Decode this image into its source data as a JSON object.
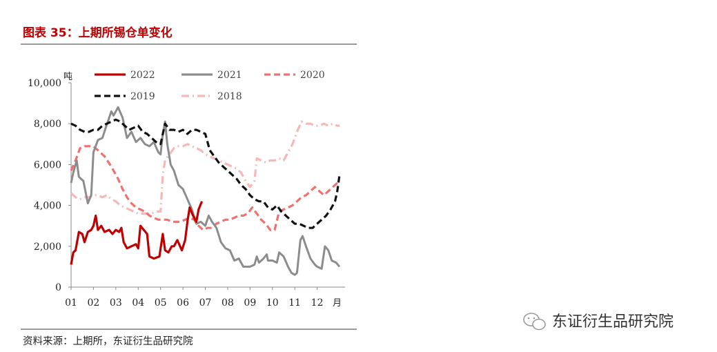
{
  "figure": {
    "title": "图表 35：上期所锡仓单变化",
    "source": "资料来源：上期所，东证衍生品研究院",
    "watermark": "东证衍生品研究院"
  },
  "chart_data": {
    "type": "line",
    "title": "图表 35：上期所锡仓单变化",
    "ylabel": "吨",
    "xlabel": "月",
    "xlim": [
      1,
      13
    ],
    "ylim": [
      0,
      10000
    ],
    "yticks": [
      0,
      2000,
      4000,
      6000,
      8000,
      10000
    ],
    "ytick_labels": [
      "0",
      "2,000",
      "4,000",
      "6,000",
      "8,000",
      "10,000"
    ],
    "xticks": [
      1,
      2,
      3,
      4,
      5,
      6,
      7,
      8,
      9,
      10,
      11,
      12
    ],
    "xtick_labels": [
      "01",
      "02",
      "03",
      "04",
      "05",
      "06",
      "07",
      "08",
      "09",
      "10",
      "11",
      "12"
    ],
    "grid": false,
    "legend_position": "top",
    "colors": {
      "2022": "#c00000",
      "2021": "#8c8c8c",
      "2020": "#f07070",
      "2019": "#111111",
      "2018": "#f5b8b8"
    },
    "series": [
      {
        "name": "2022",
        "style": "solid",
        "points": [
          [
            1.0,
            1100
          ],
          [
            1.1,
            1700
          ],
          [
            1.2,
            1800
          ],
          [
            1.35,
            2700
          ],
          [
            1.5,
            2600
          ],
          [
            1.6,
            2200
          ],
          [
            1.75,
            2700
          ],
          [
            1.9,
            2800
          ],
          [
            2.0,
            3000
          ],
          [
            2.1,
            3500
          ],
          [
            2.2,
            2800
          ],
          [
            2.35,
            3000
          ],
          [
            2.5,
            2700
          ],
          [
            2.7,
            2800
          ],
          [
            2.85,
            2600
          ],
          [
            3.0,
            2800
          ],
          [
            3.15,
            2700
          ],
          [
            3.25,
            2900
          ],
          [
            3.35,
            2200
          ],
          [
            3.5,
            1900
          ],
          [
            3.7,
            2000
          ],
          [
            3.9,
            2100
          ],
          [
            4.0,
            1900
          ],
          [
            4.1,
            3000
          ],
          [
            4.25,
            2800
          ],
          [
            4.4,
            2600
          ],
          [
            4.5,
            1500
          ],
          [
            4.7,
            1400
          ],
          [
            4.95,
            1500
          ],
          [
            5.1,
            2600
          ],
          [
            5.2,
            1800
          ],
          [
            5.35,
            1700
          ],
          [
            5.5,
            2000
          ],
          [
            5.6,
            2000
          ],
          [
            5.75,
            2300
          ],
          [
            5.95,
            1800
          ],
          [
            6.1,
            2300
          ],
          [
            6.2,
            3200
          ],
          [
            6.3,
            3900
          ],
          [
            6.45,
            3500
          ],
          [
            6.6,
            3200
          ],
          [
            6.7,
            3800
          ],
          [
            6.85,
            4200
          ]
        ]
      },
      {
        "name": "2021",
        "style": "solid",
        "points": [
          [
            1.0,
            5100
          ],
          [
            1.1,
            5600
          ],
          [
            1.25,
            6200
          ],
          [
            1.35,
            5400
          ],
          [
            1.55,
            5200
          ],
          [
            1.75,
            4100
          ],
          [
            1.9,
            4500
          ],
          [
            2.0,
            6600
          ],
          [
            2.2,
            7200
          ],
          [
            2.4,
            7300
          ],
          [
            2.55,
            7800
          ],
          [
            2.8,
            8600
          ],
          [
            2.9,
            8400
          ],
          [
            3.1,
            8800
          ],
          [
            3.3,
            8300
          ],
          [
            3.5,
            7300
          ],
          [
            3.7,
            7600
          ],
          [
            3.9,
            7100
          ],
          [
            4.1,
            7300
          ],
          [
            4.3,
            7000
          ],
          [
            4.5,
            6900
          ],
          [
            4.7,
            7100
          ],
          [
            4.9,
            6600
          ],
          [
            5.0,
            6500
          ],
          [
            5.1,
            7500
          ],
          [
            5.2,
            8100
          ],
          [
            5.3,
            7000
          ],
          [
            5.45,
            6000
          ],
          [
            5.6,
            5700
          ],
          [
            5.8,
            5000
          ],
          [
            6.0,
            4800
          ],
          [
            6.2,
            4300
          ],
          [
            6.4,
            3800
          ],
          [
            6.6,
            3100
          ],
          [
            6.8,
            3200
          ],
          [
            7.0,
            3000
          ],
          [
            7.15,
            3500
          ],
          [
            7.3,
            3200
          ],
          [
            7.5,
            2900
          ],
          [
            7.7,
            2200
          ],
          [
            7.9,
            1900
          ],
          [
            8.1,
            1800
          ],
          [
            8.3,
            1300
          ],
          [
            8.5,
            1400
          ],
          [
            8.7,
            1000
          ],
          [
            9.0,
            1000
          ],
          [
            9.2,
            1100
          ],
          [
            9.3,
            1500
          ],
          [
            9.4,
            1200
          ],
          [
            9.6,
            1400
          ],
          [
            9.75,
            1600
          ],
          [
            9.8,
            1300
          ],
          [
            10.0,
            1300
          ],
          [
            10.2,
            1200
          ],
          [
            10.3,
            1700
          ],
          [
            10.5,
            1500
          ],
          [
            10.7,
            1000
          ],
          [
            10.85,
            700
          ],
          [
            11.0,
            600
          ],
          [
            11.1,
            700
          ],
          [
            11.25,
            2300
          ],
          [
            11.35,
            2500
          ],
          [
            11.5,
            2000
          ],
          [
            11.7,
            1400
          ],
          [
            11.9,
            1100
          ],
          [
            12.0,
            1000
          ],
          [
            12.2,
            900
          ],
          [
            12.35,
            2000
          ],
          [
            12.5,
            1800
          ],
          [
            12.65,
            1300
          ],
          [
            12.85,
            1200
          ],
          [
            13.0,
            1000
          ]
        ]
      },
      {
        "name": "2020",
        "style": "dashed",
        "points": [
          [
            1.0,
            5700
          ],
          [
            1.2,
            6200
          ],
          [
            1.4,
            6800
          ],
          [
            1.6,
            6900
          ],
          [
            1.8,
            6900
          ],
          [
            2.0,
            6900
          ],
          [
            2.2,
            6700
          ],
          [
            2.5,
            6400
          ],
          [
            2.8,
            5900
          ],
          [
            3.1,
            5300
          ],
          [
            3.3,
            4800
          ],
          [
            3.5,
            4400
          ],
          [
            3.7,
            4100
          ],
          [
            3.9,
            3900
          ],
          [
            4.1,
            3800
          ],
          [
            4.3,
            3700
          ],
          [
            4.5,
            3500
          ],
          [
            4.7,
            3400
          ],
          [
            4.9,
            3300
          ],
          [
            5.1,
            3300
          ],
          [
            5.3,
            3300
          ],
          [
            5.5,
            3200
          ],
          [
            5.7,
            3200
          ],
          [
            5.9,
            3200
          ],
          [
            6.1,
            3300
          ],
          [
            6.3,
            3400
          ],
          [
            6.5,
            3300
          ],
          [
            6.7,
            3000
          ],
          [
            6.9,
            2800
          ],
          [
            7.1,
            2900
          ],
          [
            7.3,
            2900
          ],
          [
            7.5,
            3100
          ],
          [
            7.7,
            3200
          ],
          [
            7.9,
            3300
          ],
          [
            8.1,
            3300
          ],
          [
            8.3,
            3400
          ],
          [
            8.5,
            3500
          ],
          [
            8.7,
            3500
          ],
          [
            8.9,
            3600
          ],
          [
            9.1,
            3900
          ],
          [
            9.3,
            3600
          ],
          [
            9.5,
            3300
          ],
          [
            9.7,
            3100
          ],
          [
            9.9,
            2800
          ],
          [
            10.1,
            2800
          ],
          [
            10.3,
            3700
          ],
          [
            10.5,
            3800
          ],
          [
            10.7,
            3900
          ],
          [
            10.9,
            4000
          ],
          [
            11.1,
            4200
          ],
          [
            11.3,
            4400
          ],
          [
            11.5,
            4500
          ],
          [
            11.7,
            4700
          ],
          [
            11.9,
            4900
          ],
          [
            12.1,
            4700
          ],
          [
            12.3,
            4500
          ],
          [
            12.5,
            4700
          ],
          [
            12.7,
            4900
          ],
          [
            12.9,
            5100
          ],
          [
            13.0,
            5200
          ]
        ]
      },
      {
        "name": "2019",
        "style": "dashed",
        "points": [
          [
            1.0,
            8000
          ],
          [
            1.2,
            7900
          ],
          [
            1.4,
            7700
          ],
          [
            1.6,
            7600
          ],
          [
            1.8,
            7600
          ],
          [
            2.0,
            7700
          ],
          [
            2.2,
            7700
          ],
          [
            2.4,
            7900
          ],
          [
            2.6,
            8000
          ],
          [
            2.8,
            8100
          ],
          [
            3.0,
            8200
          ],
          [
            3.2,
            8100
          ],
          [
            3.4,
            7900
          ],
          [
            3.6,
            7700
          ],
          [
            3.8,
            7800
          ],
          [
            4.0,
            7900
          ],
          [
            4.2,
            7600
          ],
          [
            4.4,
            7500
          ],
          [
            4.6,
            7300
          ],
          [
            4.8,
            7100
          ],
          [
            5.0,
            7000
          ],
          [
            5.2,
            8000
          ],
          [
            5.4,
            7700
          ],
          [
            5.6,
            7700
          ],
          [
            5.8,
            7600
          ],
          [
            6.0,
            7700
          ],
          [
            6.2,
            7500
          ],
          [
            6.4,
            7700
          ],
          [
            6.6,
            7700
          ],
          [
            6.8,
            7600
          ],
          [
            7.0,
            7500
          ],
          [
            7.2,
            6700
          ],
          [
            7.4,
            6400
          ],
          [
            7.6,
            6100
          ],
          [
            7.8,
            5900
          ],
          [
            8.0,
            5700
          ],
          [
            8.2,
            5500
          ],
          [
            8.4,
            5300
          ],
          [
            8.6,
            5000
          ],
          [
            8.8,
            4800
          ],
          [
            9.0,
            4500
          ],
          [
            9.2,
            4300
          ],
          [
            9.4,
            4200
          ],
          [
            9.6,
            4200
          ],
          [
            9.8,
            3900
          ],
          [
            10.0,
            3800
          ],
          [
            10.2,
            4000
          ],
          [
            10.4,
            3700
          ],
          [
            10.6,
            3500
          ],
          [
            10.8,
            3300
          ],
          [
            11.0,
            3100
          ],
          [
            11.2,
            3100
          ],
          [
            11.4,
            3000
          ],
          [
            11.6,
            2900
          ],
          [
            11.8,
            2900
          ],
          [
            12.0,
            3100
          ],
          [
            12.2,
            3300
          ],
          [
            12.4,
            3500
          ],
          [
            12.6,
            3800
          ],
          [
            12.8,
            4200
          ],
          [
            12.9,
            4700
          ],
          [
            13.0,
            5500
          ]
        ]
      },
      {
        "name": "2018",
        "style": "dashdot",
        "points": [
          [
            1.0,
            4600
          ],
          [
            1.2,
            4400
          ],
          [
            1.4,
            4300
          ],
          [
            1.6,
            4400
          ],
          [
            1.8,
            4400
          ],
          [
            2.0,
            4500
          ],
          [
            2.2,
            4500
          ],
          [
            2.4,
            4400
          ],
          [
            2.6,
            4500
          ],
          [
            2.8,
            4300
          ],
          [
            3.0,
            4200
          ],
          [
            3.2,
            4000
          ],
          [
            3.4,
            3900
          ],
          [
            3.6,
            3800
          ],
          [
            3.8,
            3700
          ],
          [
            4.0,
            3600
          ],
          [
            4.2,
            3600
          ],
          [
            4.4,
            3600
          ],
          [
            4.6,
            3600
          ],
          [
            4.8,
            3700
          ],
          [
            5.0,
            3700
          ],
          [
            5.1,
            5500
          ],
          [
            5.2,
            6200
          ],
          [
            5.4,
            6500
          ],
          [
            5.6,
            6800
          ],
          [
            5.8,
            6900
          ],
          [
            6.0,
            6900
          ],
          [
            6.2,
            7000
          ],
          [
            6.4,
            6900
          ],
          [
            6.6,
            6800
          ],
          [
            6.8,
            6700
          ],
          [
            7.0,
            6500
          ],
          [
            7.2,
            6400
          ],
          [
            7.4,
            6300
          ],
          [
            7.6,
            6200
          ],
          [
            7.8,
            6100
          ],
          [
            8.0,
            6000
          ],
          [
            8.2,
            5900
          ],
          [
            8.4,
            5800
          ],
          [
            8.6,
            5600
          ],
          [
            8.8,
            5200
          ],
          [
            9.0,
            4900
          ],
          [
            9.2,
            5200
          ],
          [
            9.3,
            6300
          ],
          [
            9.5,
            6200
          ],
          [
            9.7,
            6100
          ],
          [
            9.9,
            6200
          ],
          [
            10.1,
            6200
          ],
          [
            10.3,
            6300
          ],
          [
            10.5,
            6200
          ],
          [
            10.7,
            6600
          ],
          [
            10.9,
            7000
          ],
          [
            11.1,
            7600
          ],
          [
            11.3,
            8100
          ],
          [
            11.5,
            8000
          ],
          [
            11.7,
            8000
          ],
          [
            11.9,
            7900
          ],
          [
            12.1,
            7900
          ],
          [
            12.3,
            8000
          ],
          [
            12.5,
            7900
          ],
          [
            12.7,
            8000
          ],
          [
            12.9,
            7900
          ],
          [
            13.0,
            7900
          ]
        ]
      }
    ]
  }
}
